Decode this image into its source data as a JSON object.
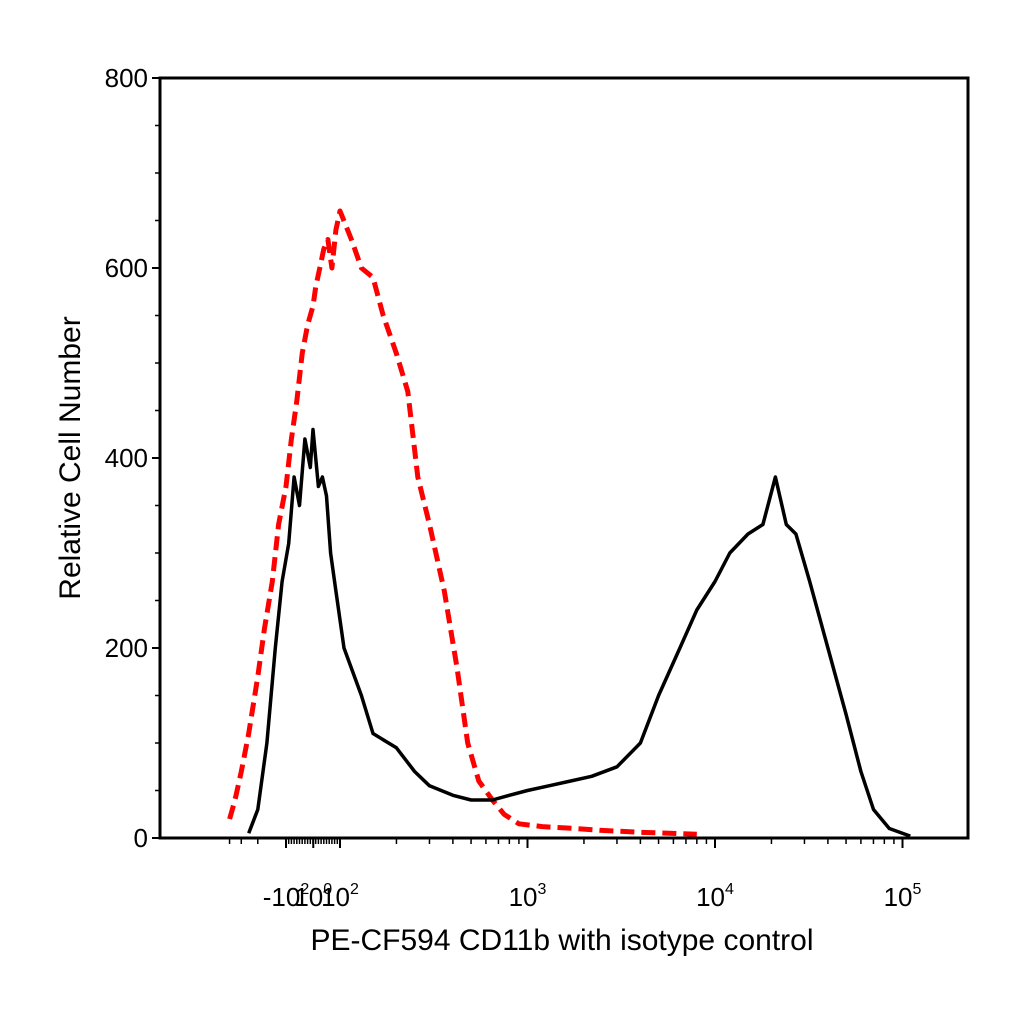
{
  "chart_data": {
    "type": "line",
    "title": "",
    "xlabel": "PE-CF594 CD11b with isotype control",
    "ylabel": "Relative Cell Number",
    "x_scale": "logicle",
    "ylim": [
      0,
      800
    ],
    "y_ticks": [
      "0",
      "200",
      "400",
      "600",
      "800"
    ],
    "x_ticks": [
      {
        "base": "-10",
        "exp": "2",
        "value": -100
      },
      {
        "base": "10",
        "exp": "0",
        "value": 1
      },
      {
        "base": "10",
        "exp": "2",
        "value": 100
      },
      {
        "base": "10",
        "exp": "3",
        "value": 1000
      },
      {
        "base": "10",
        "exp": "4",
        "value": 10000
      },
      {
        "base": "10",
        "exp": "5",
        "value": 100000
      }
    ],
    "grid": false,
    "legend": "none",
    "series": [
      {
        "color": "#ff0000",
        "style": "dashed",
        "points": [
          [
            -400,
            20
          ],
          [
            -350,
            40
          ],
          [
            -300,
            70
          ],
          [
            -250,
            110
          ],
          [
            -200,
            170
          ],
          [
            -170,
            220
          ],
          [
            -140,
            270
          ],
          [
            -120,
            330
          ],
          [
            -100,
            370
          ],
          [
            -80,
            420
          ],
          [
            -60,
            460
          ],
          [
            -40,
            510
          ],
          [
            -20,
            540
          ],
          [
            0,
            560
          ],
          [
            10,
            580
          ],
          [
            25,
            600
          ],
          [
            40,
            620
          ],
          [
            55,
            630
          ],
          [
            70,
            600
          ],
          [
            85,
            640
          ],
          [
            100,
            660
          ],
          [
            115,
            630
          ],
          [
            130,
            600
          ],
          [
            150,
            590
          ],
          [
            170,
            550
          ],
          [
            200,
            510
          ],
          [
            230,
            470
          ],
          [
            260,
            380
          ],
          [
            300,
            330
          ],
          [
            360,
            260
          ],
          [
            420,
            180
          ],
          [
            480,
            100
          ],
          [
            550,
            60
          ],
          [
            650,
            40
          ],
          [
            750,
            25
          ],
          [
            900,
            15
          ],
          [
            1200,
            12
          ],
          [
            1800,
            10
          ],
          [
            2500,
            8
          ],
          [
            4000,
            6
          ],
          [
            8000,
            4
          ]
        ]
      },
      {
        "color": "#000000",
        "style": "solid",
        "points": [
          [
            -250,
            5
          ],
          [
            -200,
            30
          ],
          [
            -160,
            100
          ],
          [
            -130,
            200
          ],
          [
            -110,
            270
          ],
          [
            -90,
            310
          ],
          [
            -70,
            380
          ],
          [
            -50,
            350
          ],
          [
            -30,
            420
          ],
          [
            -10,
            390
          ],
          [
            0,
            430
          ],
          [
            10,
            400
          ],
          [
            20,
            370
          ],
          [
            35,
            380
          ],
          [
            50,
            360
          ],
          [
            65,
            300
          ],
          [
            85,
            260
          ],
          [
            105,
            200
          ],
          [
            130,
            150
          ],
          [
            150,
            110
          ],
          [
            200,
            95
          ],
          [
            250,
            70
          ],
          [
            300,
            55
          ],
          [
            400,
            45
          ],
          [
            500,
            40
          ],
          [
            650,
            40
          ],
          [
            800,
            45
          ],
          [
            1000,
            50
          ],
          [
            1300,
            55
          ],
          [
            1700,
            60
          ],
          [
            2200,
            65
          ],
          [
            3000,
            75
          ],
          [
            4000,
            100
          ],
          [
            5000,
            150
          ],
          [
            6500,
            200
          ],
          [
            8000,
            240
          ],
          [
            10000,
            270
          ],
          [
            12000,
            300
          ],
          [
            15000,
            320
          ],
          [
            18000,
            330
          ],
          [
            21000,
            380
          ],
          [
            24000,
            330
          ],
          [
            27000,
            320
          ],
          [
            32000,
            270
          ],
          [
            40000,
            200
          ],
          [
            50000,
            130
          ],
          [
            60000,
            70
          ],
          [
            70000,
            30
          ],
          [
            85000,
            10
          ],
          [
            110000,
            2
          ]
        ]
      }
    ]
  }
}
